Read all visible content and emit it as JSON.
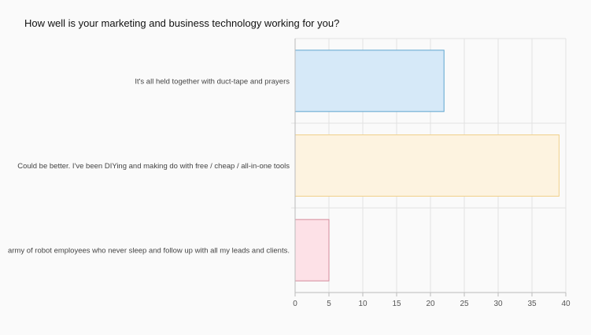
{
  "chart_data": {
    "type": "bar",
    "orientation": "horizontal",
    "title": "How well is your marketing and business technology working for you?",
    "categories": [
      "It's all held together with duct-tape and prayers",
      "Could be better. I've been DIYing and making do with free / cheap / all-in-one tools",
      "army of robot employees who never sleep and follow up with all my leads and clients."
    ],
    "values": [
      22,
      39,
      5
    ],
    "xlim": [
      0,
      40
    ],
    "xticks": [
      0,
      5,
      10,
      15,
      20,
      25,
      30,
      35,
      40
    ],
    "grid": true,
    "legend": "none",
    "colors": {
      "fills": [
        "#d6e9f8",
        "#fdf3e0",
        "#fde1e7"
      ],
      "strokes": [
        "#5ea6cf",
        "#f0d08a",
        "#d48a9b"
      ],
      "grid": "#e3e3e3",
      "axis": "#bbbbbb"
    }
  }
}
